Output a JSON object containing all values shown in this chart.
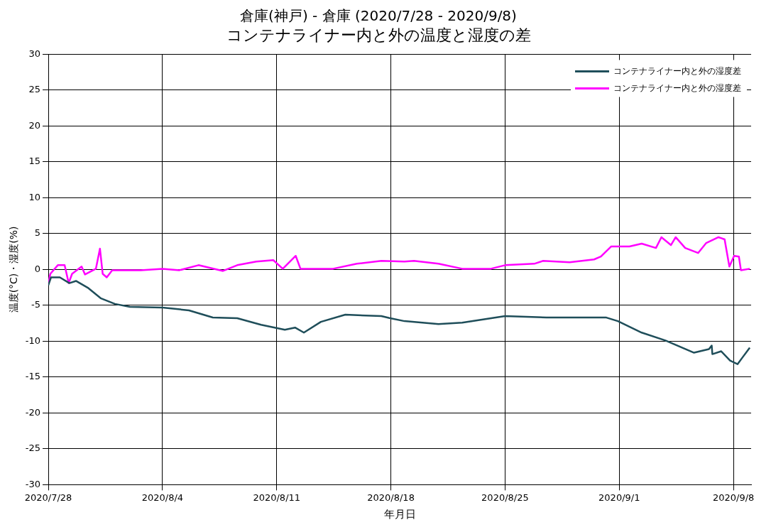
{
  "chart_data": {
    "type": "line",
    "title": "倉庫(神戸) - 倉庫 (2020/7/28 - 2020/9/8)",
    "subtitle": "コンテナライナー内と外の温度と湿度の差",
    "xlabel": "年月日",
    "ylabel": "温度(°C)・湿度(%)",
    "xlim": [
      "2020-07-28",
      "2020-09-09T02:00"
    ],
    "xticks": [
      {
        "value": "2020-07-28",
        "label": "2020/7/28"
      },
      {
        "value": "2020-08-04",
        "label": "2020/8/4"
      },
      {
        "value": "2020-08-11",
        "label": "2020/8/11"
      },
      {
        "value": "2020-08-18",
        "label": "2020/8/18"
      },
      {
        "value": "2020-08-25",
        "label": "2020/8/25"
      },
      {
        "value": "2020-09-01",
        "label": "2020/9/1"
      },
      {
        "value": "2020-09-08",
        "label": "2020/9/8"
      }
    ],
    "ylim": [
      -30,
      30
    ],
    "yticks": [
      -30,
      -25,
      -20,
      -15,
      -10,
      -5,
      0,
      5,
      10,
      15,
      20,
      25,
      30
    ],
    "grid": true,
    "legend": "top right",
    "marker": "none",
    "line_style": "solid",
    "series": [
      {
        "name": "コンテナライナー内と外の湿度差",
        "color": "#1f4e5a",
        "x": [
          "2020-07-28T00:00",
          "2020-07-28T04:00",
          "2020-07-28T17:00",
          "2020-07-29T07:00",
          "2020-07-29T17:00",
          "2020-07-30T11:00",
          "2020-07-31T05:00",
          "2020-08-01T02:00",
          "2020-08-02T00:00",
          "2020-08-04T00:00",
          "2020-08-05T15:00",
          "2020-08-07T02:00",
          "2020-08-08T14:00",
          "2020-08-10T01:00",
          "2020-08-11T12:00",
          "2020-08-12T03:00",
          "2020-08-12T16:00",
          "2020-08-13T17:00",
          "2020-08-15T05:00",
          "2020-08-17T10:00",
          "2020-08-17T23:00",
          "2020-08-18T20:00",
          "2020-08-20T22:00",
          "2020-08-22T09:00",
          "2020-08-25T00:00",
          "2020-08-27T13:00",
          "2020-08-31T05:00",
          "2020-08-31T22:00",
          "2020-09-02T09:00",
          "2020-09-03T20:00",
          "2020-09-05T14:00",
          "2020-09-06T12:00",
          "2020-09-06T16:00",
          "2020-09-06T17:00",
          "2020-09-07T06:00",
          "2020-09-07T19:00",
          "2020-09-08T06:00",
          "2020-09-08T13:00",
          "2020-09-09T00:00"
        ],
        "values": [
          -2.2,
          -1.1,
          -1.1,
          -1.9,
          -1.6,
          -2.6,
          -4.0,
          -4.8,
          -5.2,
          -5.3,
          -5.7,
          -6.7,
          -6.8,
          -7.7,
          -8.4,
          -8.1,
          -8.8,
          -7.3,
          -6.3,
          -6.5,
          -6.8,
          -7.2,
          -7.6,
          -7.4,
          -6.5,
          -6.7,
          -6.7,
          -7.2,
          -8.8,
          -9.9,
          -11.6,
          -11.1,
          -10.6,
          -11.8,
          -11.4,
          -12.7,
          -13.2,
          -12.3,
          -10.9
        ]
      },
      {
        "name": "コンテナライナー内と外の湿度差",
        "color": "#ff00ff",
        "x": [
          "2020-07-28T00:00",
          "2020-07-28T03:00",
          "2020-07-28T14:00",
          "2020-07-29T00:00",
          "2020-07-29T06:00",
          "2020-07-29T11:00",
          "2020-07-30T01:00",
          "2020-07-30T06:00",
          "2020-07-30T22:00",
          "2020-07-31T04:00",
          "2020-07-31T08:00",
          "2020-07-31T14:00",
          "2020-07-31T22:00",
          "2020-08-02T16:00",
          "2020-08-04T00:00",
          "2020-08-05T01:00",
          "2020-08-06T05:00",
          "2020-08-07T17:00",
          "2020-08-08T14:00",
          "2020-08-09T18:00",
          "2020-08-10T19:00",
          "2020-08-11T09:00",
          "2020-08-12T04:00",
          "2020-08-12T11:00",
          "2020-08-14T11:00",
          "2020-08-15T22:00",
          "2020-08-17T10:00",
          "2020-08-18T20:00",
          "2020-08-19T10:00",
          "2020-08-20T22:00",
          "2020-08-22T09:00",
          "2020-08-24T03:00",
          "2020-08-25T00:00",
          "2020-08-26T19:00",
          "2020-08-27T08:00",
          "2020-08-28T23:00",
          "2020-08-30T11:00",
          "2020-08-30T21:00",
          "2020-08-31T12:00",
          "2020-09-01T15:00",
          "2020-09-02T09:00",
          "2020-09-03T06:00",
          "2020-09-03T14:00",
          "2020-09-04T04:00",
          "2020-09-04T11:00",
          "2020-09-05T01:00",
          "2020-09-05T20:00",
          "2020-09-06T08:00",
          "2020-09-07T02:00",
          "2020-09-07T11:00",
          "2020-09-07T18:00",
          "2020-09-08T01:00",
          "2020-09-08T08:00",
          "2020-09-08T11:00",
          "2020-09-09T00:00"
        ],
        "values": [
          -2.0,
          -0.6,
          0.6,
          0.6,
          -1.9,
          -0.6,
          0.4,
          -0.7,
          0.1,
          2.9,
          -0.6,
          -1.1,
          -0.1,
          -0.1,
          0.1,
          -0.1,
          0.6,
          -0.2,
          0.6,
          1.1,
          1.3,
          0.1,
          1.9,
          0.1,
          0.1,
          0.8,
          1.2,
          1.1,
          1.2,
          0.8,
          0.1,
          0.1,
          0.6,
          0.8,
          1.2,
          1.0,
          1.4,
          1.8,
          3.2,
          3.2,
          3.6,
          3.0,
          4.5,
          3.4,
          4.5,
          3.0,
          2.3,
          3.7,
          4.5,
          4.2,
          0.4,
          1.9,
          1.8,
          -0.1,
          0.1
        ]
      }
    ]
  }
}
